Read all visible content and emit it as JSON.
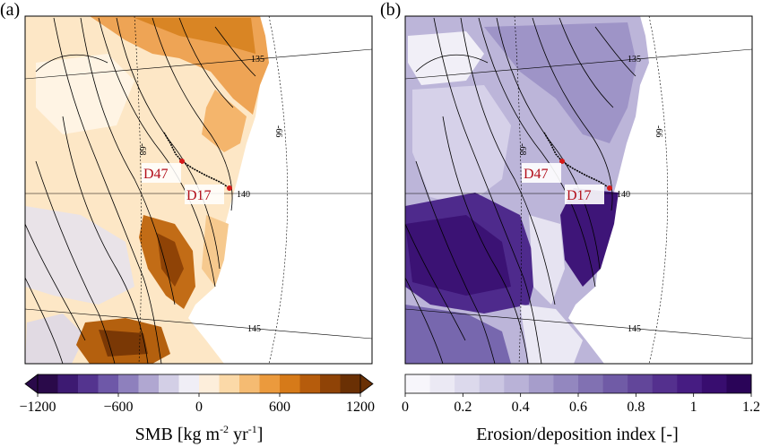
{
  "panels": [
    {
      "label": "(a)",
      "colorbar": {
        "type": "diverging",
        "ticks": [
          "−1200",
          "−600",
          "0",
          "600",
          "1200"
        ],
        "title_parts": {
          "main": "SMB [kg m",
          "sup1": "-2",
          "mid": " yr",
          "sup2": "-1",
          "end": "]"
        },
        "colors": [
          "#2a0a4a",
          "#3d1a72",
          "#54348f",
          "#6e58a8",
          "#8e80bd",
          "#b0a7d1",
          "#d3cfe6",
          "#f0eef6",
          "#fdeedb",
          "#fbd9a8",
          "#f5bb72",
          "#eb9a3d",
          "#d67a19",
          "#b65c0c",
          "#8f4306",
          "#6a3004"
        ]
      }
    },
    {
      "label": "(b)",
      "colorbar": {
        "type": "sequential",
        "ticks": [
          "0",
          "0.2",
          "0.4",
          "0.6",
          "0.8",
          "1",
          "1.2"
        ],
        "title": "Erosion/deposition index [-]",
        "colors": [
          "#f7f6fb",
          "#ebe9f4",
          "#dcd9ec",
          "#cbc6e2",
          "#b9b2d7",
          "#a69dcb",
          "#9387bf",
          "#8171b2",
          "#705ba6",
          "#62469a",
          "#54308e",
          "#461c82",
          "#380d6f",
          "#2a0458"
        ]
      }
    }
  ],
  "map_labels": {
    "site1": "D47",
    "site2": "D17",
    "lat_label_1": "135",
    "lat_label_2": "140",
    "lat_label_3": "145",
    "lon_label_1": "-68",
    "lon_label_2": "-66"
  },
  "colors": {
    "marker": "#d41a1a",
    "label_text": "#b3101c"
  }
}
